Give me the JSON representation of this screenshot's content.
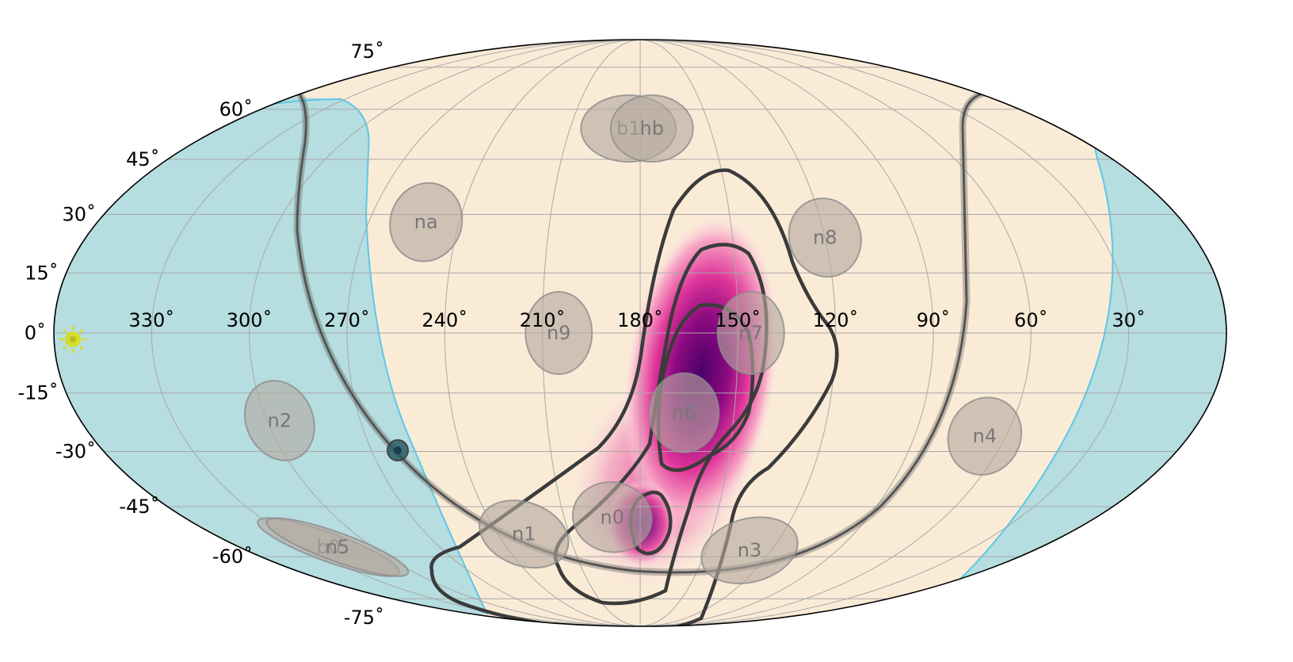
{
  "chart_data": {
    "type": "heatmap",
    "title": "",
    "projection": "mollweide",
    "longitude_axis_direction": "decreasing to the right",
    "grid": true,
    "colors": {
      "background": "#faebd7",
      "earth_occultation_fill": "#b6dde0",
      "earth_occultation_edge": "#5bc8e6",
      "probability_low": "#fce0e6",
      "probability_mid": "#e0359a",
      "probability_high": "#4b0068",
      "contour_line": "#3b3b3b",
      "detector_fill": "#b5a99f",
      "detector_edge": "#8c8c8c",
      "sun_marker": "#d6dc2c",
      "galactic_plane": "#555555"
    },
    "lon_ticks": [
      "330˚",
      "300˚",
      "270˚",
      "240˚",
      "210˚",
      "180˚",
      "150˚",
      "120˚",
      "90˚",
      "60˚",
      "30˚"
    ],
    "lat_ticks": [
      "75˚",
      "60˚",
      "45˚",
      "30˚",
      "15˚",
      "0˚",
      "-15˚",
      "-30˚",
      "-45˚",
      "-60˚",
      "-75˚"
    ],
    "probability_peak": {
      "ra": 173,
      "dec": -12
    },
    "contour_levels": [
      "inner",
      "middle",
      "outer"
    ],
    "detectors": [
      {
        "name": "b1",
        "ra": 185,
        "dec": 54
      },
      {
        "name": "hb",
        "ra": 175,
        "dec": 54
      },
      {
        "name": "na",
        "ra": 251,
        "dec": 28
      },
      {
        "name": "n8",
        "ra": 120,
        "dec": 24
      },
      {
        "name": "n9",
        "ra": 205,
        "dec": 0
      },
      {
        "name": "n7",
        "ra": 146,
        "dec": 0
      },
      {
        "name": "n6",
        "ra": 166,
        "dec": -20
      },
      {
        "name": "n2",
        "ra": 296,
        "dec": -22
      },
      {
        "name": "n4",
        "ra": 67,
        "dec": -26
      },
      {
        "name": "n0",
        "ra": 191,
        "dec": -48
      },
      {
        "name": "n1",
        "ra": 229,
        "dec": -53
      },
      {
        "name": "n3",
        "ra": 130,
        "dec": -58
      },
      {
        "name": "b0",
        "ra": 320,
        "dec": -57
      },
      {
        "name": "n5",
        "ra": 316,
        "dec": -57
      }
    ],
    "sun": {
      "ra": 354,
      "dec": -2
    },
    "galactic_center": {
      "ra": 266,
      "dec": -29
    }
  }
}
